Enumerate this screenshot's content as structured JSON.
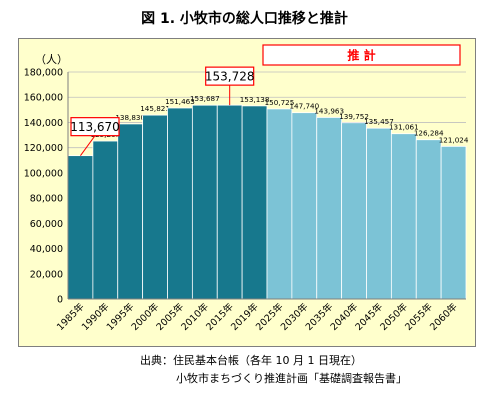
{
  "title": "図 1.  小牧市の総人口推移と推計",
  "source_line1": "出典：住民基本台帳（各年 10 月 1 日現在）",
  "source_line2": "小牧市まちづくり推進計画「基礎調査報告書」",
  "colors": {
    "actual_fill": "#17788d",
    "projection_fill": "#7cc3d6",
    "bar_stroke": "#ffffff",
    "plot_bg": "#ffffcc",
    "grid": "#bfbfbf",
    "callout": "#ff0000"
  },
  "chart_data": {
    "type": "bar",
    "title": "図 1.  小牧市の総人口推移と推計",
    "ylabel": "（人）",
    "xlabel": "",
    "ylim": [
      0,
      180000
    ],
    "yticks": [
      0,
      20000,
      40000,
      60000,
      80000,
      100000,
      120000,
      140000,
      160000,
      180000
    ],
    "ytick_labels": [
      "0",
      "20,000",
      "40,000",
      "60,000",
      "80,000",
      "100,000",
      "120,000",
      "140,000",
      "160,000",
      "180,000"
    ],
    "grid": true,
    "categories": [
      "1985年",
      "1990年",
      "1995年",
      "2000年",
      "2005年",
      "2010年",
      "2015年",
      "2019年",
      "2025年",
      "2030年",
      "2035年",
      "2040年",
      "2045年",
      "2050年",
      "2055年",
      "2060年"
    ],
    "values": [
      113670,
      125261,
      138830,
      145821,
      151463,
      153687,
      153728,
      153138,
      150725,
      147740,
      143963,
      139752,
      135457,
      131061,
      126284,
      121024
    ],
    "value_labels": [
      "113,670",
      "125,261",
      "138,830",
      "145,821",
      "151,463",
      "153,687",
      "153,728",
      "153,138",
      "150,725",
      "147,740",
      "143,963",
      "139,752",
      "135,457",
      "131,061",
      "126,284",
      "121,024"
    ],
    "projection_start_index": 8,
    "projection_label": "推 計",
    "callouts": [
      0,
      6
    ]
  }
}
